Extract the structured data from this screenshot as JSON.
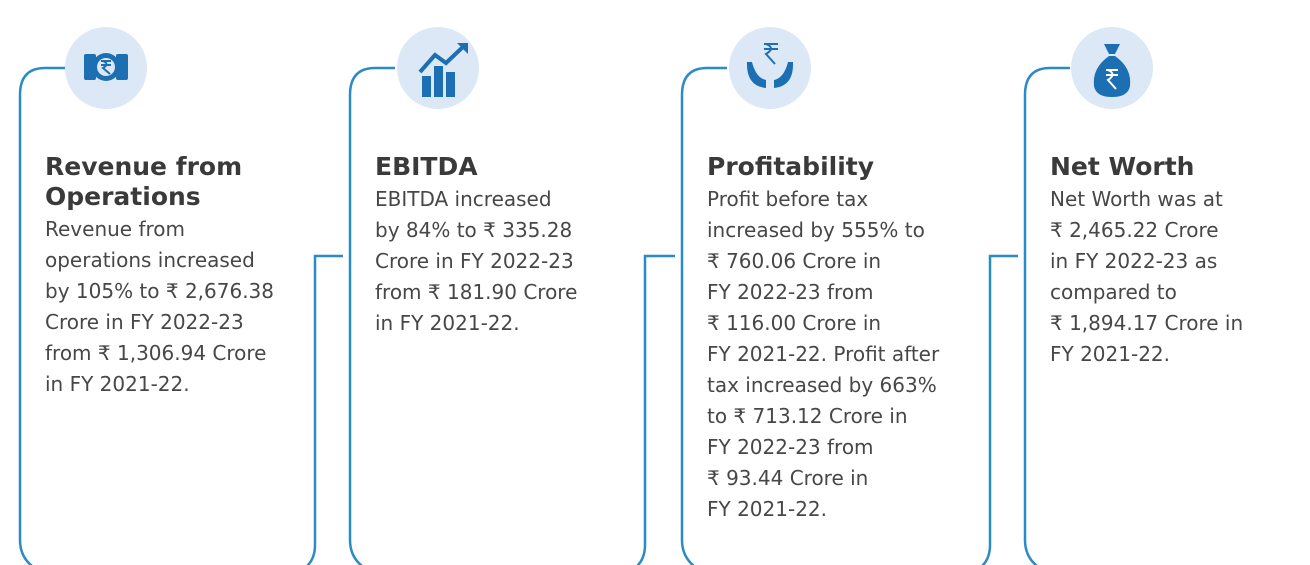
{
  "cards": [
    {
      "title": [
        "Revenue from",
        "Operations"
      ],
      "body": [
        "Revenue from",
        "operations increased",
        "by 105% to ₹ 2,676.38",
        "Crore in FY 2022-23",
        "from ₹ 1,306.94 Crore",
        "in FY 2021-22."
      ]
    },
    {
      "title": [
        "EBITDA"
      ],
      "body": [
        "EBITDA increased",
        "by 84% to ₹ 335.28",
        "Crore in FY 2022-23",
        "from ₹ 181.90 Crore",
        "in FY 2021-22."
      ]
    },
    {
      "title": [
        "Profitability"
      ],
      "body": [
        "Profit before tax",
        "increased by 555% to",
        "₹ 760.06 Crore in",
        "FY 2022-23 from",
        "₹ 116.00 Crore in",
        "FY 2021-22. Profit after",
        "tax increased by 663%",
        "to ₹ 713.12 Crore in",
        "FY 2022-23 from",
        "₹ 93.44 Crore in",
        "FY 2021-22."
      ]
    },
    {
      "title": [
        "Net Worth"
      ],
      "body": [
        "Net Worth was at",
        "₹ 2,465.22 Crore",
        "in FY 2022-23 as",
        "compared to",
        "₹ 1,894.17 Crore in",
        "FY 2021-22."
      ]
    }
  ]
}
